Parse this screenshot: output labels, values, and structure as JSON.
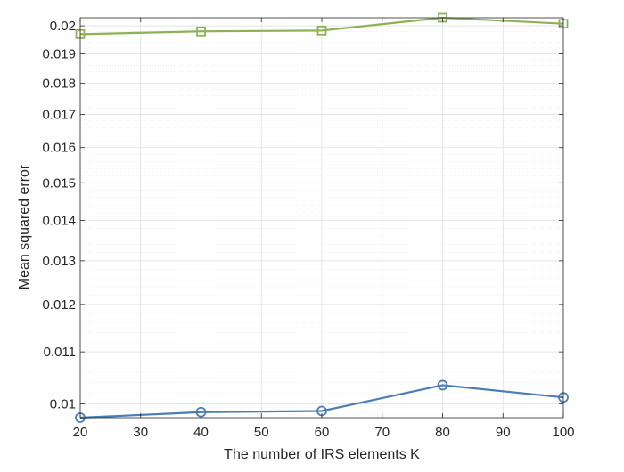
{
  "chart_data": {
    "type": "line",
    "xlabel": "The number of IRS elements K",
    "ylabel": "Mean squared error",
    "y_scale": "log",
    "grid": true,
    "minor_grid": true,
    "xlim": [
      20,
      100
    ],
    "ylim": [
      0.00975,
      0.0203
    ],
    "xticks": [
      20,
      30,
      40,
      50,
      60,
      70,
      80,
      90,
      100
    ],
    "xtick_labels": [
      "20",
      "30",
      "40",
      "50",
      "60",
      "70",
      "80",
      "90",
      "100"
    ],
    "yticks": [
      0.01,
      0.011,
      0.012,
      0.013,
      0.014,
      0.015,
      0.016,
      0.017,
      0.018,
      0.019,
      0.02
    ],
    "ytick_labels": [
      "0.01",
      "0.011",
      "0.012",
      "0.013",
      "0.014",
      "0.015",
      "0.016",
      "0.017",
      "0.018",
      "0.019",
      "0.02"
    ],
    "x": [
      20,
      40,
      60,
      80,
      100
    ],
    "series": [
      {
        "values": [
          0.0197,
          0.0198,
          0.01983,
          0.0203,
          0.02008
        ],
        "color": "#8DB255",
        "marker": "square"
      },
      {
        "values": [
          0.00975,
          0.00985,
          0.00987,
          0.01035,
          0.01012
        ],
        "color": "#4A7EB5",
        "marker": "circle"
      }
    ]
  }
}
